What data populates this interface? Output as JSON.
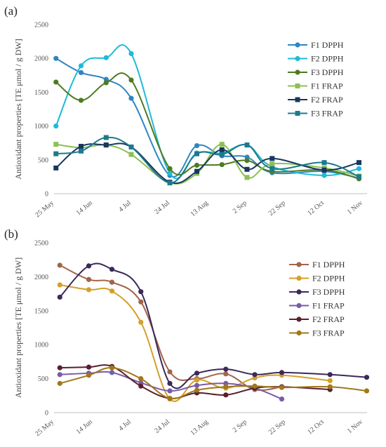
{
  "chart_data": [
    {
      "panel_label": "(a)",
      "type": "line",
      "ylabel": "Antioxidant properties  [TE μmol / g DW]",
      "ylim": [
        0,
        2500
      ],
      "yticks": [
        "0",
        "500",
        "1000",
        "1500",
        "2000",
        "2500"
      ],
      "x_ticks": [
        "25 May",
        "14 Jun",
        "4 Jul",
        "24 Jul",
        "13 Aug",
        "2 Sep",
        "22 Sep",
        "12 Oct",
        "1 Nov"
      ],
      "x_tick_days": [
        0,
        20,
        40,
        60,
        80,
        100,
        120,
        140,
        160
      ],
      "x_domain_days": [
        0,
        160
      ],
      "grid": false,
      "legend_position": "right",
      "series": [
        {
          "name": "F1 DPPH",
          "color": "#2e86c1",
          "marker": "circle",
          "x": [
            1,
            14,
            27,
            40,
            60,
            74,
            87,
            100,
            113,
            140,
            158
          ],
          "y": [
            2000,
            1790,
            1690,
            1410,
            270,
            710,
            560,
            540,
            310,
            330,
            230
          ]
        },
        {
          "name": "F2 DPPH",
          "color": "#1fbad6",
          "marker": "circle",
          "x": [
            1,
            14,
            27,
            40,
            60,
            74,
            87,
            100,
            113,
            140,
            158
          ],
          "y": [
            1000,
            1890,
            2010,
            2070,
            300,
            600,
            600,
            720,
            400,
            270,
            370
          ]
        },
        {
          "name": "F3 DPPH",
          "color": "#4f7a21",
          "marker": "circle",
          "x": [
            1,
            14,
            27,
            40,
            60,
            74,
            87,
            100,
            113,
            140,
            158
          ],
          "y": [
            1650,
            1380,
            1640,
            1680,
            370,
            420,
            430,
            490,
            330,
            350,
            220
          ]
        },
        {
          "name": "F1 FRAP",
          "color": "#8cc152",
          "marker": "square",
          "x": [
            1,
            14,
            27,
            40,
            60,
            74,
            87,
            100,
            113,
            140,
            158
          ],
          "y": [
            730,
            680,
            720,
            580,
            160,
            300,
            730,
            240,
            440,
            380,
            260
          ]
        },
        {
          "name": "F2 FRAP",
          "color": "#17375e",
          "marker": "square",
          "x": [
            1,
            14,
            27,
            40,
            60,
            74,
            87,
            100,
            113,
            140,
            158
          ],
          "y": [
            380,
            700,
            720,
            690,
            170,
            330,
            650,
            360,
            520,
            350,
            460
          ]
        },
        {
          "name": "F3 FRAP",
          "color": "#1c7a8c",
          "marker": "square",
          "x": [
            1,
            14,
            27,
            40,
            60,
            74,
            87,
            100,
            113,
            140,
            158
          ],
          "y": [
            590,
            630,
            830,
            690,
            160,
            590,
            580,
            720,
            370,
            460,
            250
          ]
        }
      ]
    },
    {
      "panel_label": "(b)",
      "type": "line",
      "ylabel": "Antioxidant properties  [TE μmol / g DW]",
      "ylim": [
        0,
        2500
      ],
      "yticks": [
        "0",
        "500",
        "1000",
        "1500",
        "2000",
        "2500"
      ],
      "x_ticks": [
        "25 May",
        "14 Jun",
        "4 Jul",
        "24 Jul",
        "13 Aug",
        "2 Sep",
        "22 Sep",
        "12 Oct",
        "1 Nov"
      ],
      "x_tick_days": [
        0,
        20,
        40,
        60,
        80,
        100,
        120,
        140,
        160
      ],
      "x_domain_days": [
        0,
        160
      ],
      "grid": false,
      "legend_position": "right",
      "series": [
        {
          "name": "F1 DPPH",
          "color": "#a0654a",
          "marker": "circle",
          "x": [
            3,
            18,
            30,
            45,
            60,
            74,
            89,
            104,
            118
          ],
          "y": [
            2170,
            1960,
            1920,
            1630,
            600,
            500,
            570,
            340,
            380
          ]
        },
        {
          "name": "F2 DPPH",
          "color": "#d4a02a",
          "marker": "circle",
          "x": [
            3,
            18,
            30,
            45,
            60,
            74,
            89,
            104,
            118,
            143
          ],
          "y": [
            1880,
            1810,
            1790,
            1330,
            200,
            480,
            360,
            510,
            550,
            470
          ]
        },
        {
          "name": "F3 DPPH",
          "color": "#3b2a5a",
          "marker": "circle",
          "x": [
            3,
            18,
            30,
            45,
            60,
            74,
            89,
            104,
            118,
            143,
            162
          ],
          "y": [
            1700,
            2160,
            2110,
            1780,
            430,
            580,
            640,
            560,
            590,
            560,
            520
          ]
        },
        {
          "name": "F1 FRAP",
          "color": "#7a5ba8",
          "marker": "circle",
          "x": [
            3,
            18,
            30,
            45,
            60,
            74,
            89,
            104,
            118
          ],
          "y": [
            560,
            580,
            590,
            440,
            320,
            400,
            430,
            360,
            200
          ]
        },
        {
          "name": "F2 FRAP",
          "color": "#5a1f2e",
          "marker": "circle",
          "x": [
            3,
            18,
            30,
            45,
            60,
            74,
            89,
            104,
            118,
            143
          ],
          "y": [
            660,
            670,
            680,
            390,
            210,
            290,
            260,
            360,
            380,
            340
          ]
        },
        {
          "name": "F3 FRAP",
          "color": "#a07818",
          "marker": "circle",
          "x": [
            3,
            18,
            30,
            45,
            60,
            74,
            89,
            104,
            118,
            143,
            162
          ],
          "y": [
            430,
            550,
            660,
            500,
            210,
            330,
            380,
            390,
            370,
            380,
            320
          ]
        }
      ]
    }
  ]
}
